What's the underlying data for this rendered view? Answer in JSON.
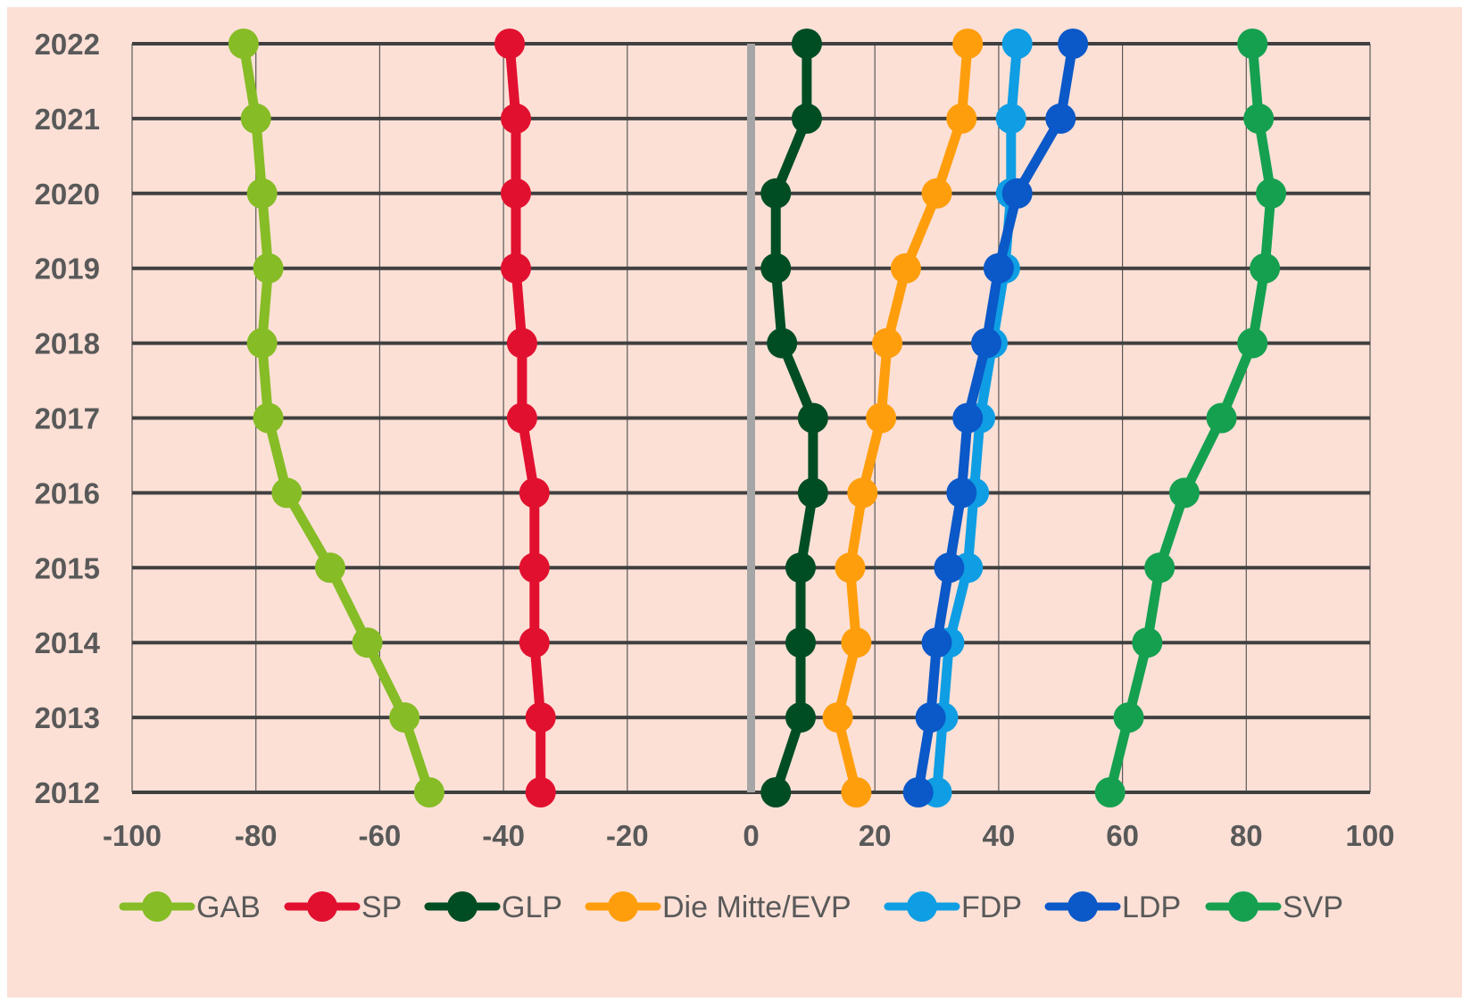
{
  "chart_data": {
    "type": "line",
    "orientation": "horizontal-values-vertical-years",
    "title": "",
    "xlabel": "",
    "ylabel": "",
    "xlim": [
      -100,
      100
    ],
    "x_ticks": [
      "-100",
      "-80",
      "-60",
      "-40",
      "-20",
      "0",
      "20",
      "40",
      "60",
      "80",
      "100"
    ],
    "categories": [
      "2012",
      "2013",
      "2014",
      "2015",
      "2016",
      "2017",
      "2018",
      "2019",
      "2020",
      "2021",
      "2022"
    ],
    "grid": true,
    "legend_position": "bottom",
    "background_color": "#fce0d6",
    "zero_line_color": "#a6a6a6",
    "series": [
      {
        "name": "GAB",
        "color": "#86bc25",
        "values": [
          -52,
          -56,
          -62,
          -68,
          -75,
          -78,
          -79,
          -78,
          -79,
          -80,
          -82
        ]
      },
      {
        "name": "SP",
        "color": "#e2102f",
        "values": [
          -34,
          -34,
          -35,
          -35,
          -35,
          -37,
          -37,
          -38,
          -38,
          -38,
          -39
        ]
      },
      {
        "name": "GLP",
        "color": "#004d24",
        "values": [
          4,
          8,
          8,
          8,
          10,
          10,
          5,
          4,
          4,
          9,
          9
        ]
      },
      {
        "name": "Die Mitte/EVP",
        "color": "#ff9e0d",
        "values": [
          17,
          14,
          17,
          16,
          18,
          21,
          22,
          25,
          30,
          34,
          35
        ]
      },
      {
        "name": "FDP",
        "color": "#0f9ee3",
        "values": [
          30,
          31,
          32,
          35,
          36,
          37,
          39,
          41,
          42,
          42,
          43
        ]
      },
      {
        "name": "LDP",
        "color": "#0b58c8",
        "values": [
          27,
          29,
          30,
          32,
          34,
          35,
          38,
          40,
          43,
          50,
          52
        ]
      },
      {
        "name": "SVP",
        "color": "#15a050",
        "values": [
          58,
          61,
          64,
          66,
          70,
          76,
          81,
          83,
          84,
          82,
          81
        ]
      }
    ]
  }
}
